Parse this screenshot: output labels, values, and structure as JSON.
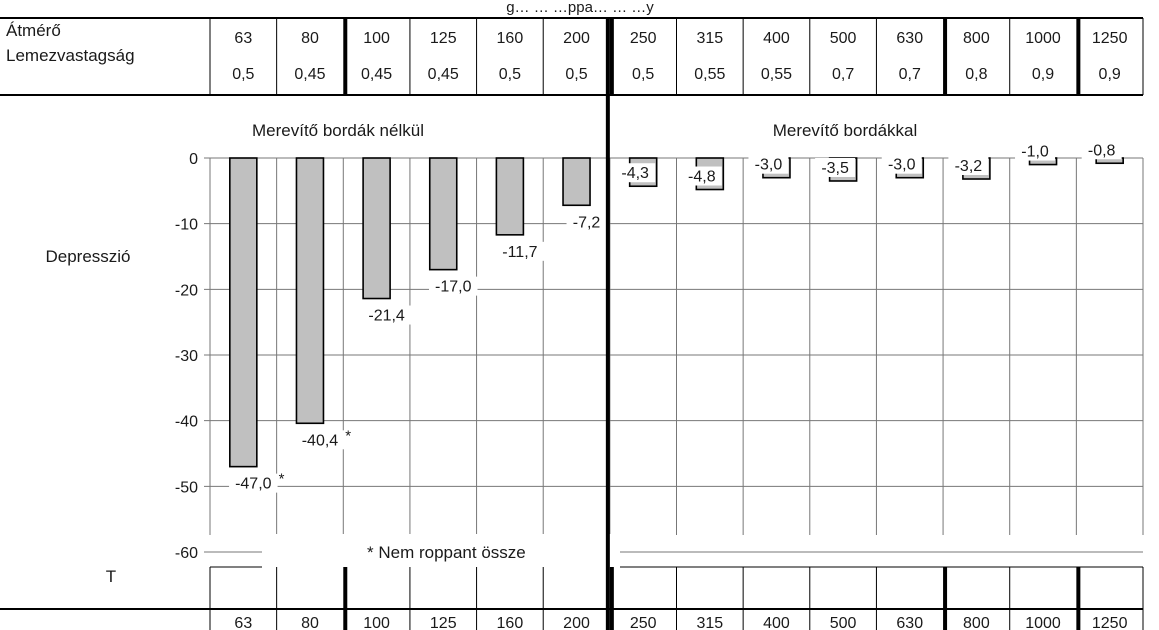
{
  "header": {
    "title_partial": "g… … …ppa… … …y",
    "row1_label": "Átmérő",
    "row2_label": "Lemezvastagság"
  },
  "section_labels": {
    "left": "Merevítő bordák nélkül",
    "right": "Merevítő bordákkal"
  },
  "side_labels": {
    "ylabel": "Depresszió",
    "bottom_left": "T"
  },
  "note": "* Nem roppant össze",
  "chart_data": {
    "type": "bar",
    "title": "",
    "ylabel": "Depresszió",
    "xlabel": "",
    "ylim": [
      -60,
      0
    ],
    "yticks": [
      "0",
      "-10",
      "-20",
      "-30",
      "-40",
      "-50",
      "-60"
    ],
    "categories": [
      "63",
      "80",
      "100",
      "125",
      "160",
      "200",
      "250",
      "315",
      "400",
      "500",
      "630",
      "800",
      "1000",
      "1250"
    ],
    "thickness": [
      "0,5",
      "0,45",
      "0,45",
      "0,45",
      "0,5",
      "0,5",
      "0,5",
      "0,55",
      "0,55",
      "0,7",
      "0,7",
      "0,8",
      "0,9",
      "0,9"
    ],
    "values": [
      -47.0,
      -40.4,
      -21.4,
      -17.0,
      -11.7,
      -7.2,
      -4.3,
      -4.8,
      -3.0,
      -3.5,
      -3.0,
      -3.2,
      -1.0,
      -0.8
    ],
    "value_labels": [
      "-47,0",
      "-40,4",
      "-21,4",
      "-17,0",
      "-11,7",
      "-7,2",
      "-4,3",
      "-4,8",
      "-3,0",
      "-3,5",
      "-3,0",
      "-3,2",
      "-1,0",
      "-0,8"
    ],
    "not_collapsed_marks": [
      "*",
      "*",
      "",
      "",
      "",
      "",
      "",
      "",
      "",
      "",
      "",
      "",
      "",
      ""
    ],
    "grid": true,
    "bar_color": "#c0c0c0"
  }
}
